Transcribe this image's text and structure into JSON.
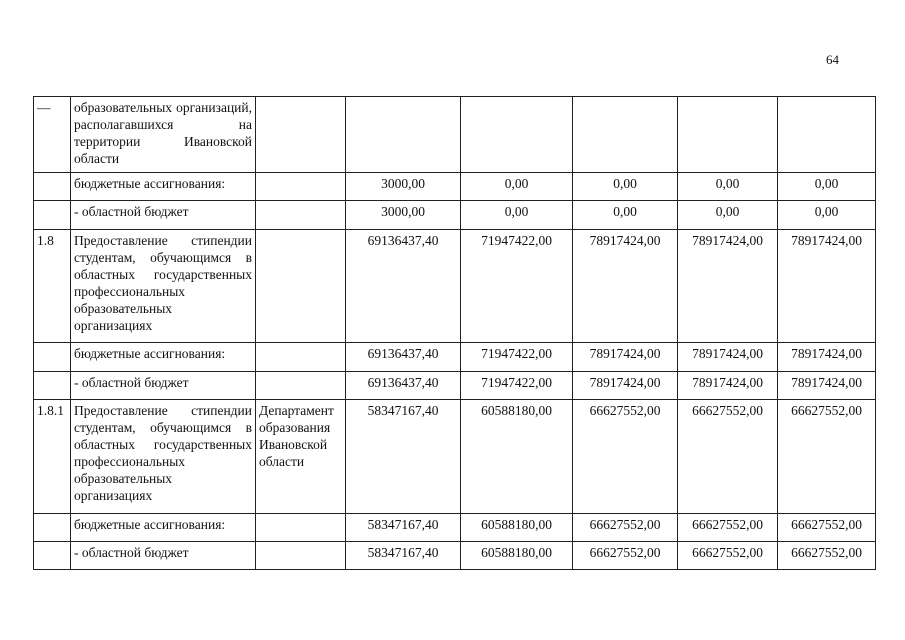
{
  "page_number": "64",
  "table": {
    "rows": [
      [
        "—",
        "образовательных организаций, располагавшихся на территории Ивановской области",
        null,
        null,
        null,
        null,
        null,
        null
      ],
      [
        null,
        "бюджетные ассигнования:",
        null,
        "3000,00",
        "0,00",
        "0,00",
        "0,00",
        "0,00"
      ],
      [
        null,
        "- областной бюджет",
        null,
        "3000,00",
        "0,00",
        "0,00",
        "0,00",
        "0,00"
      ],
      [
        "1.8",
        "Предоставление стипендии студентам, обучающимся в областных государственных профессиональных образовательных организациях",
        null,
        "69136437,40",
        "71947422,00",
        "78917424,00",
        "78917424,00",
        "78917424,00"
      ],
      [
        null,
        "бюджетные ассигнования:",
        null,
        "69136437,40",
        "71947422,00",
        "78917424,00",
        "78917424,00",
        "78917424,00"
      ],
      [
        null,
        "- областной бюджет",
        null,
        "69136437,40",
        "71947422,00",
        "78917424,00",
        "78917424,00",
        "78917424,00"
      ],
      [
        "1.8.1",
        "Предоставление стипендии студентам, обучающимся в областных государственных профессиональных образовательных организациях",
        "Департамент образования Ивановской области",
        "58347167,40",
        "60588180,00",
        "66627552,00",
        "66627552,00",
        "66627552,00"
      ],
      [
        null,
        "бюджетные ассигнования:",
        null,
        "58347167,40",
        "60588180,00",
        "66627552,00",
        "66627552,00",
        "66627552,00"
      ],
      [
        null,
        "- областной бюджет",
        null,
        "58347167,40",
        "60588180,00",
        "66627552,00",
        "66627552,00",
        "66627552,00"
      ]
    ]
  }
}
